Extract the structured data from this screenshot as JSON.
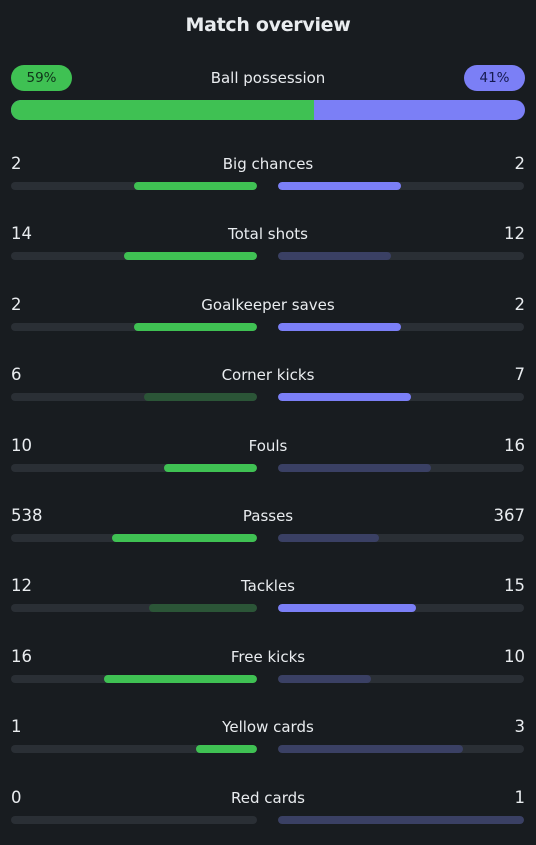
{
  "title": "Match overview",
  "colors": {
    "home_strong": "#3fc153",
    "home_weak": "#2b5537",
    "away_strong": "#7b7ff6",
    "away_weak": "#3a4064",
    "track": "#2a2f35"
  },
  "possession": {
    "label": "Ball possession",
    "home_text": "59%",
    "away_text": "41%",
    "home_fraction": 0.59
  },
  "stats": [
    {
      "label": "Big chances",
      "home": "2",
      "away": "2",
      "home_frac": 0.5,
      "away_frac": 0.5,
      "home_strong": true,
      "away_strong": true
    },
    {
      "label": "Total shots",
      "home": "14",
      "away": "12",
      "home_frac": 0.54,
      "away_frac": 0.46,
      "home_strong": true,
      "away_strong": false
    },
    {
      "label": "Goalkeeper saves",
      "home": "2",
      "away": "2",
      "home_frac": 0.5,
      "away_frac": 0.5,
      "home_strong": true,
      "away_strong": true
    },
    {
      "label": "Corner kicks",
      "home": "6",
      "away": "7",
      "home_frac": 0.46,
      "away_frac": 0.54,
      "home_strong": false,
      "away_strong": true
    },
    {
      "label": "Fouls",
      "home": "10",
      "away": "16",
      "home_frac": 0.38,
      "away_frac": 0.62,
      "home_strong": true,
      "away_strong": false
    },
    {
      "label": "Passes",
      "home": "538",
      "away": "367",
      "home_frac": 0.59,
      "away_frac": 0.41,
      "home_strong": true,
      "away_strong": false
    },
    {
      "label": "Tackles",
      "home": "12",
      "away": "15",
      "home_frac": 0.44,
      "away_frac": 0.56,
      "home_strong": false,
      "away_strong": true
    },
    {
      "label": "Free kicks",
      "home": "16",
      "away": "10",
      "home_frac": 0.62,
      "away_frac": 0.38,
      "home_strong": true,
      "away_strong": false
    },
    {
      "label": "Yellow cards",
      "home": "1",
      "away": "3",
      "home_frac": 0.25,
      "away_frac": 0.75,
      "home_strong": true,
      "away_strong": false
    },
    {
      "label": "Red cards",
      "home": "0",
      "away": "1",
      "home_frac": 0.0,
      "away_frac": 1.0,
      "home_strong": true,
      "away_strong": false
    }
  ]
}
